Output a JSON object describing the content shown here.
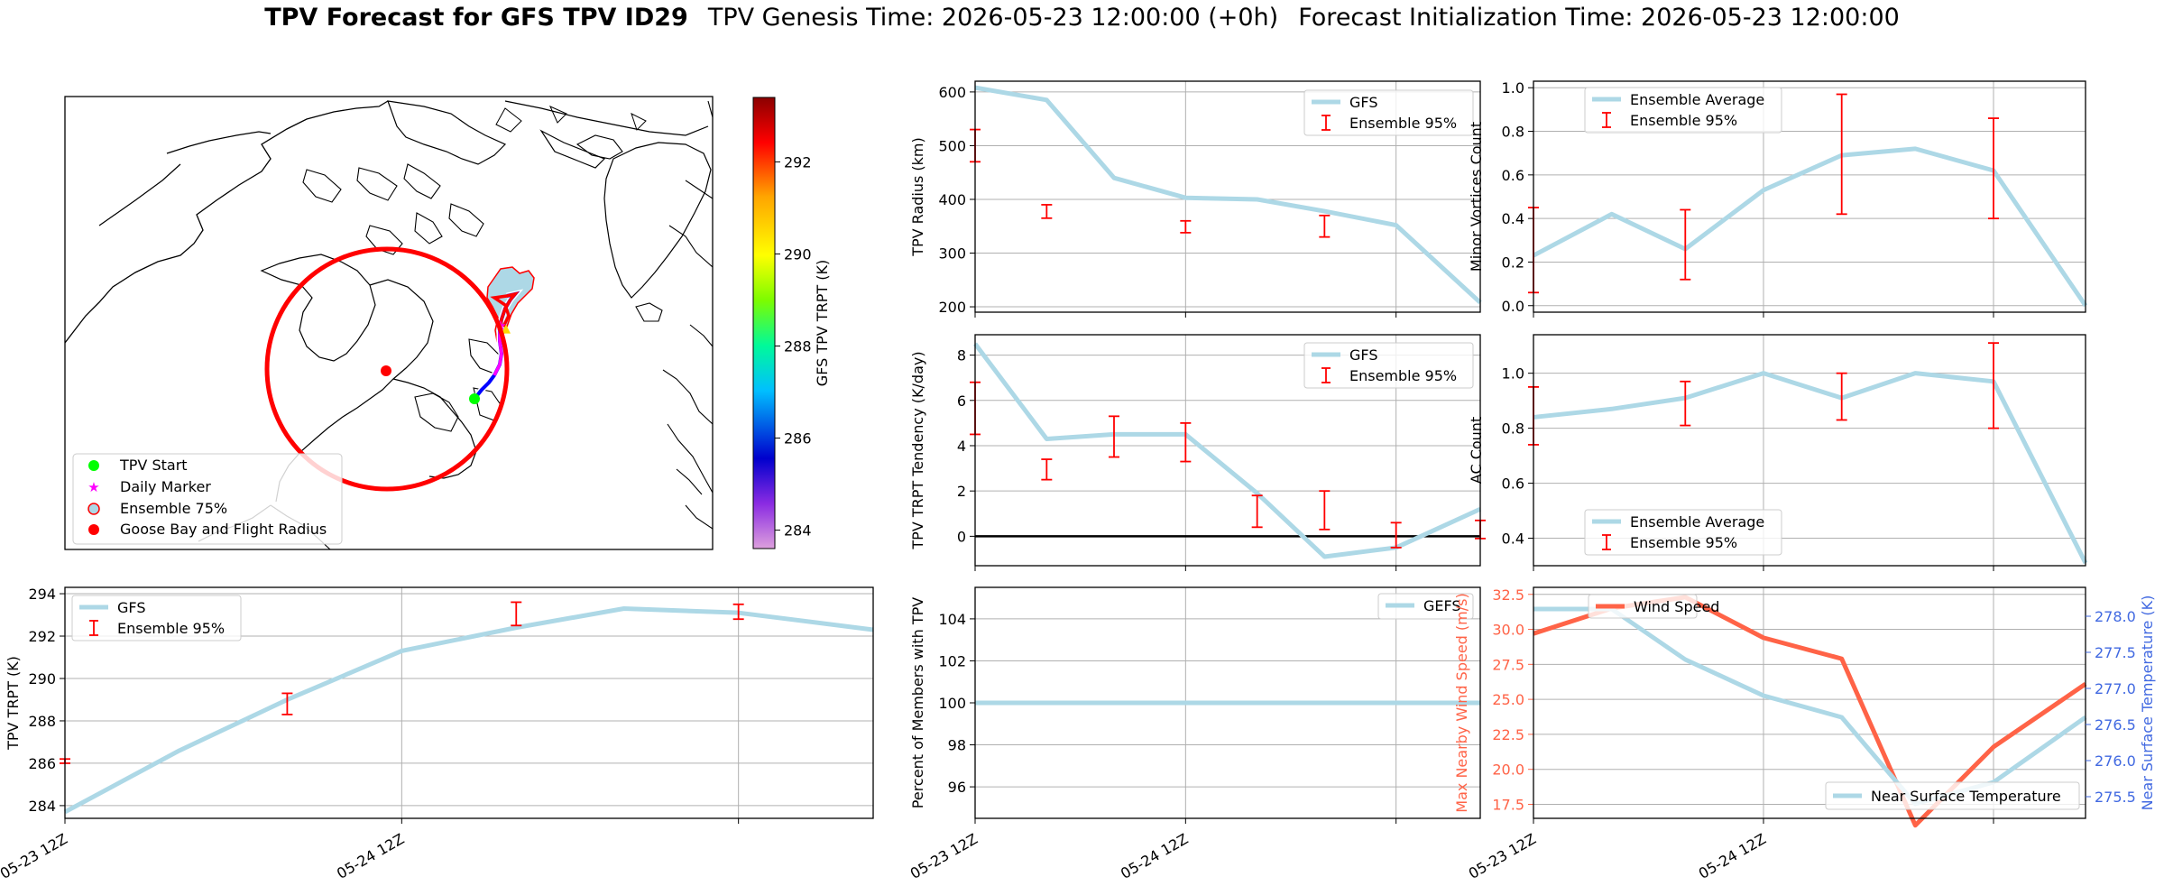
{
  "figure": {
    "title_bold": "TPV Forecast for GFS TPV ID29",
    "title_genesis": "TPV Genesis Time: 2026-05-23 12:00:00 (+0h)",
    "title_init": "Forecast Initialization Time: 2026-05-23 12:00:00"
  },
  "colors": {
    "gfs_line": "#add8e6",
    "ensemble_error": "#ff0000",
    "wind_speed": "#ff6347",
    "temperature_axis": "#4169e1",
    "tpv_start": "#00ff00",
    "daily_marker": "#ff00ff",
    "goose_bay": "#ff0000"
  },
  "map": {
    "colorbar_label": "GFS TPV TRPT (K)",
    "colorbar_ticks": [
      "292",
      "290",
      "288",
      "286",
      "284"
    ],
    "colorbar_tick_values": [
      292,
      290,
      288,
      286,
      284
    ],
    "colorbar_range": [
      283.6,
      293.4
    ],
    "colormap": "gist_ncar-like (violet → blue → cyan → green → yellow → red)",
    "legend": [
      "TPV Start",
      "Daily Marker",
      "Ensemble 75%",
      "Goose Bay and Flight Radius"
    ],
    "legend_location": "lower-left",
    "icons": [
      "green-circle-marker",
      "magenta-star-marker",
      "lightblue-circle-marker",
      "red-circle-marker"
    ]
  },
  "chart_data": [
    {
      "id": "radius",
      "type": "line",
      "ylabel": "TPV Radius (km)",
      "ylim": [
        190,
        620
      ],
      "xlim": [
        0,
        1.2
      ],
      "yticks": [
        200,
        300,
        400,
        500,
        600
      ],
      "x_gridlines": [
        0,
        0.5,
        1.0
      ],
      "xtick_labels": [],
      "legend": [
        "GFS",
        "Ensemble 95%"
      ],
      "legend_location": "upper-right",
      "series": [
        {
          "name": "GFS",
          "x": [
            0,
            0.17,
            0.33,
            0.5,
            0.67,
            0.83,
            1.0,
            1.2
          ],
          "y": [
            608,
            585,
            440,
            403,
            400,
            378,
            352,
            208
          ]
        }
      ],
      "error_bars": [
        {
          "x": 0,
          "low": 470,
          "high": 530
        },
        {
          "x": 0.17,
          "low": 365,
          "high": 390
        },
        {
          "x": 0.5,
          "low": 338,
          "high": 360
        },
        {
          "x": 0.83,
          "low": 330,
          "high": 370
        }
      ]
    },
    {
      "id": "minor",
      "type": "line",
      "ylabel": "Minor Vortices Count",
      "ylim": [
        -0.03,
        1.03
      ],
      "xlim": [
        0,
        1.2
      ],
      "yticks": [
        0.0,
        0.2,
        0.4,
        0.6,
        0.8,
        1.0
      ],
      "ytick_labels": [
        "0.0",
        "0.2",
        "0.4",
        "0.6",
        "0.8",
        "1.0"
      ],
      "x_gridlines": [
        0,
        0.5,
        1.0
      ],
      "xtick_labels": [],
      "legend": [
        "Ensemble Average",
        "Ensemble 95%"
      ],
      "legend_location": "upper-left",
      "series": [
        {
          "name": "Ensemble Average",
          "x": [
            0,
            0.17,
            0.33,
            0.5,
            0.67,
            0.83,
            1.0,
            1.2
          ],
          "y": [
            0.23,
            0.42,
            0.26,
            0.53,
            0.69,
            0.72,
            0.62,
            0.0
          ]
        }
      ],
      "error_bars": [
        {
          "x": 0,
          "low": 0.06,
          "high": 0.45
        },
        {
          "x": 0.33,
          "low": 0.12,
          "high": 0.44
        },
        {
          "x": 0.67,
          "low": 0.42,
          "high": 0.97
        },
        {
          "x": 1.0,
          "low": 0.4,
          "high": 0.86
        }
      ]
    },
    {
      "id": "tendency",
      "type": "line",
      "ylabel": "TPV TRPT Tendency (K/day)",
      "ylim": [
        -1.3,
        8.9
      ],
      "xlim": [
        0,
        1.2
      ],
      "yticks": [
        0,
        2,
        4,
        6,
        8
      ],
      "x_gridlines": [
        0,
        0.5,
        1.0
      ],
      "xtick_labels": [],
      "zero_line": true,
      "legend": [
        "GFS",
        "Ensemble 95%"
      ],
      "legend_location": "upper-right",
      "series": [
        {
          "name": "GFS",
          "x": [
            0,
            0.17,
            0.33,
            0.5,
            0.67,
            0.83,
            1.0,
            1.2
          ],
          "y": [
            8.5,
            4.3,
            4.5,
            4.5,
            1.9,
            -0.9,
            -0.5,
            1.2
          ]
        }
      ],
      "error_bars": [
        {
          "x": 0,
          "low": 4.5,
          "high": 6.8
        },
        {
          "x": 0.17,
          "low": 2.5,
          "high": 3.4
        },
        {
          "x": 0.33,
          "low": 3.5,
          "high": 5.3
        },
        {
          "x": 0.5,
          "low": 3.3,
          "high": 5.0
        },
        {
          "x": 0.67,
          "low": 0.4,
          "high": 1.8
        },
        {
          "x": 0.83,
          "low": 0.3,
          "high": 2.0
        },
        {
          "x": 1.0,
          "low": -0.5,
          "high": 0.6
        },
        {
          "x": 1.2,
          "low": -0.1,
          "high": 0.7
        }
      ]
    },
    {
      "id": "ac",
      "type": "line",
      "ylabel": "AC Count",
      "ylim": [
        0.3,
        1.14
      ],
      "xlim": [
        0,
        1.2
      ],
      "yticks": [
        0.4,
        0.6,
        0.8,
        1.0
      ],
      "ytick_labels": [
        "0.4",
        "0.6",
        "0.8",
        "1.0"
      ],
      "x_gridlines": [
        0,
        0.5,
        1.0
      ],
      "xtick_labels": [],
      "legend": [
        "Ensemble Average",
        "Ensemble 95%"
      ],
      "legend_location": "lower-left",
      "series": [
        {
          "name": "Ensemble Average",
          "x": [
            0,
            0.17,
            0.33,
            0.5,
            0.67,
            0.83,
            1.0,
            1.2
          ],
          "y": [
            0.84,
            0.87,
            0.91,
            1.0,
            0.91,
            1.0,
            0.97,
            0.31
          ]
        }
      ],
      "error_bars": [
        {
          "x": 0,
          "low": 0.74,
          "high": 0.95
        },
        {
          "x": 0.33,
          "low": 0.81,
          "high": 0.97
        },
        {
          "x": 0.67,
          "low": 0.83,
          "high": 1.0
        },
        {
          "x": 1.0,
          "low": 0.8,
          "high": 1.11
        }
      ]
    },
    {
      "id": "trpt",
      "type": "line",
      "ylabel": "TPV TRPT (K)",
      "ylim": [
        283.4,
        294.3
      ],
      "xlim": [
        0,
        1.2
      ],
      "yticks": [
        284,
        286,
        288,
        290,
        292,
        294
      ],
      "x_gridlines": [
        0,
        0.5,
        1.0
      ],
      "xtick_labels": [
        {
          "x": 0,
          "label": "05-23 12Z"
        },
        {
          "x": 0.5,
          "label": "05-24 12Z"
        }
      ],
      "legend": [
        "GFS",
        "Ensemble 95%"
      ],
      "legend_location": "upper-left",
      "series": [
        {
          "name": "GFS",
          "x": [
            0,
            0.17,
            0.33,
            0.5,
            0.67,
            0.83,
            1.0,
            1.2
          ],
          "y": [
            283.7,
            286.6,
            289.0,
            291.3,
            292.4,
            293.3,
            293.1,
            292.3
          ]
        }
      ],
      "error_bars": [
        {
          "x": 0,
          "low": 286.0,
          "high": 286.2
        },
        {
          "x": 0.33,
          "low": 288.3,
          "high": 289.3
        },
        {
          "x": 0.67,
          "low": 292.5,
          "high": 293.6
        },
        {
          "x": 1.0,
          "low": 292.8,
          "high": 293.5
        }
      ]
    },
    {
      "id": "members",
      "type": "line",
      "ylabel": "Percent of Members with TPV",
      "ylim": [
        94.5,
        105.5
      ],
      "xlim": [
        0,
        1.2
      ],
      "yticks": [
        96,
        98,
        100,
        102,
        104
      ],
      "x_gridlines": [
        0,
        0.5,
        1.0
      ],
      "xtick_labels": [
        {
          "x": 0,
          "label": "05-23 12Z"
        },
        {
          "x": 0.5,
          "label": "05-24 12Z"
        }
      ],
      "legend": [
        "GEFS"
      ],
      "legend_location": "upper-right",
      "series": [
        {
          "name": "GEFS",
          "x": [
            0,
            1.2
          ],
          "y": [
            100,
            100
          ]
        }
      ]
    },
    {
      "id": "wind",
      "type": "line",
      "ylabel": "Max Nearby Wind Speed (m/s)",
      "ylabel_right": "Near Surface Temperature (K)",
      "ylim": [
        16.5,
        33.0
      ],
      "ylim_right": [
        275.2,
        278.4
      ],
      "xlim": [
        0,
        1.2
      ],
      "yticks": [
        17.5,
        20.0,
        22.5,
        25.0,
        27.5,
        30.0,
        32.5
      ],
      "ytick_labels": [
        "17.5",
        "20.0",
        "22.5",
        "25.0",
        "27.5",
        "30.0",
        "32.5"
      ],
      "yticks_right": [
        275.5,
        276.0,
        276.5,
        277.0,
        277.5,
        278.0
      ],
      "ytick_labels_right": [
        "275.5",
        "276.0",
        "276.5",
        "277.0",
        "277.5",
        "278.0"
      ],
      "x_gridlines": [
        0,
        0.5,
        1.0
      ],
      "xtick_labels": [
        {
          "x": 0,
          "label": "05-23 12Z"
        },
        {
          "x": 0.5,
          "label": "05-24 12Z"
        }
      ],
      "legend": [
        "Wind Speed",
        "Near Surface Temperature"
      ],
      "series": [
        {
          "name": "Wind Speed",
          "axis": "left",
          "x": [
            0,
            0.17,
            0.33,
            0.5,
            0.67,
            0.83,
            1.0,
            1.2
          ],
          "y": [
            29.7,
            31.5,
            32.3,
            29.4,
            27.9,
            16.0,
            21.6,
            26.1
          ]
        },
        {
          "name": "Near Surface Temperature",
          "axis": "right",
          "x": [
            0,
            0.17,
            0.33,
            0.5,
            0.67,
            0.83,
            1.0,
            1.2
          ],
          "y": [
            278.1,
            278.1,
            277.4,
            276.9,
            276.6,
            275.4,
            275.7,
            276.6
          ]
        }
      ]
    }
  ]
}
